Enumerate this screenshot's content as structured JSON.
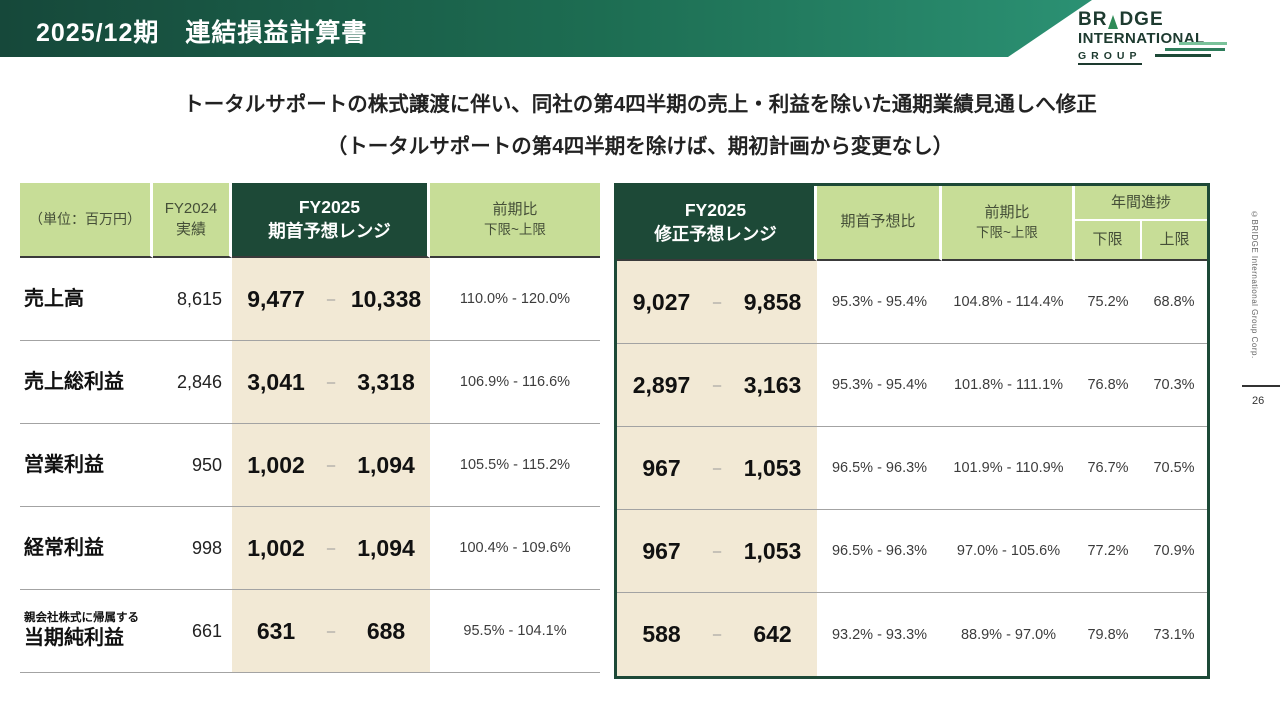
{
  "title": "2025/12期　連結損益計算書",
  "logo": {
    "line1_pre": "BR",
    "line1_post": "DGE",
    "line2": "INTERNATIONAL",
    "line3": "GROUP",
    "tree_icon_color": "#2e8b57"
  },
  "side": {
    "copyright": "©BRIDGE International Group Corp.",
    "page_number": "26"
  },
  "subtitle": {
    "line1": "トータルサポートの株式譲渡に伴い、同社の第4四半期の売上・利益を除いた通期業績見通しへ修正",
    "line2": "（トータルサポートの第4四半期を除けば、期初計画から変更なし）"
  },
  "left_table": {
    "unit_label": "（単位：百万円）",
    "col_fy2024_line1": "FY2024",
    "col_fy2024_line2": "実績",
    "col_fy2025_line1": "FY2025",
    "col_fy2025_line2": "期首予想レンジ",
    "col_yoy_line1": "前期比",
    "col_yoy_line2": "下限~上限"
  },
  "right_table": {
    "col_fy2025_line1": "FY2025",
    "col_fy2025_line2": "修正予想レンジ",
    "col_vs_initial": "期首予想比",
    "col_yoy_line1": "前期比",
    "col_yoy_line2": "下限~上限",
    "col_progress": "年間進捗",
    "col_progress_lower": "下限",
    "col_progress_upper": "上限"
  },
  "misc": {
    "range_dash": "–"
  },
  "colors": {
    "header_gradient_left": "#16483a",
    "header_gradient_right": "#2b9173",
    "light_green": "#c7dd97",
    "dark_green": "#1d4937",
    "beige": "#f2e9d5"
  },
  "rows": [
    {
      "label": "売上高",
      "label_small": "",
      "fy2024": "8,615",
      "initial_low": "9,477",
      "initial_high": "10,338",
      "initial_yoy": "110.0% - 120.0%",
      "revised_low": "9,027",
      "revised_high": "9,858",
      "vs_initial": "95.3% - 95.4%",
      "revised_yoy": "104.8% - 114.4%",
      "progress_lower": "75.2%",
      "progress_upper": "68.8%"
    },
    {
      "label": "売上総利益",
      "label_small": "",
      "fy2024": "2,846",
      "initial_low": "3,041",
      "initial_high": "3,318",
      "initial_yoy": "106.9% - 116.6%",
      "revised_low": "2,897",
      "revised_high": "3,163",
      "vs_initial": "95.3% - 95.4%",
      "revised_yoy": "101.8% - 111.1%",
      "progress_lower": "76.8%",
      "progress_upper": "70.3%"
    },
    {
      "label": "営業利益",
      "label_small": "",
      "fy2024": "950",
      "initial_low": "1,002",
      "initial_high": "1,094",
      "initial_yoy": "105.5% - 115.2%",
      "revised_low": "967",
      "revised_high": "1,053",
      "vs_initial": "96.5% - 96.3%",
      "revised_yoy": "101.9% - 110.9%",
      "progress_lower": "76.7%",
      "progress_upper": "70.5%"
    },
    {
      "label": "経常利益",
      "label_small": "",
      "fy2024": "998",
      "initial_low": "1,002",
      "initial_high": "1,094",
      "initial_yoy": "100.4% - 109.6%",
      "revised_low": "967",
      "revised_high": "1,053",
      "vs_initial": "96.5% - 96.3%",
      "revised_yoy": "97.0% - 105.6%",
      "progress_lower": "77.2%",
      "progress_upper": "70.9%"
    },
    {
      "label": "当期純利益",
      "label_small": "親会社株式に帰属する",
      "fy2024": "661",
      "initial_low": "631",
      "initial_high": "688",
      "initial_yoy": "95.5% - 104.1%",
      "revised_low": "588",
      "revised_high": "642",
      "vs_initial": "93.2% - 93.3%",
      "revised_yoy": "88.9% - 97.0%",
      "progress_lower": "79.8%",
      "progress_upper": "73.1%"
    }
  ]
}
